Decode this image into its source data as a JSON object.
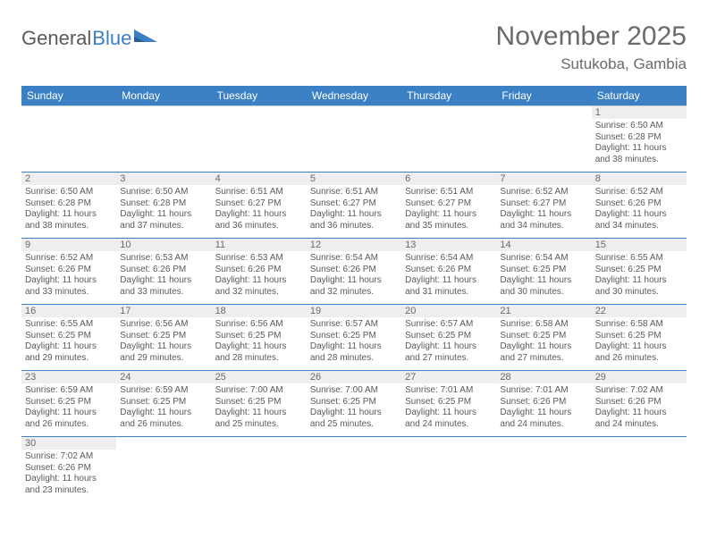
{
  "logo": {
    "part1": "General",
    "part2": "Blue"
  },
  "header": {
    "month_title": "November 2025",
    "location": "Sutukoba, Gambia"
  },
  "colors": {
    "header_bg": "#3b7fc4",
    "header_text": "#ffffff",
    "row_divider": "#3b7fc4",
    "daynum_bg": "#eeeeee",
    "text": "#5a5a5a"
  },
  "weekdays": [
    "Sunday",
    "Monday",
    "Tuesday",
    "Wednesday",
    "Thursday",
    "Friday",
    "Saturday"
  ],
  "weeks": [
    [
      null,
      null,
      null,
      null,
      null,
      null,
      {
        "n": "1",
        "sr": "6:50 AM",
        "ss": "6:28 PM",
        "dl": "11 hours and 38 minutes."
      }
    ],
    [
      {
        "n": "2",
        "sr": "6:50 AM",
        "ss": "6:28 PM",
        "dl": "11 hours and 38 minutes."
      },
      {
        "n": "3",
        "sr": "6:50 AM",
        "ss": "6:28 PM",
        "dl": "11 hours and 37 minutes."
      },
      {
        "n": "4",
        "sr": "6:51 AM",
        "ss": "6:27 PM",
        "dl": "11 hours and 36 minutes."
      },
      {
        "n": "5",
        "sr": "6:51 AM",
        "ss": "6:27 PM",
        "dl": "11 hours and 36 minutes."
      },
      {
        "n": "6",
        "sr": "6:51 AM",
        "ss": "6:27 PM",
        "dl": "11 hours and 35 minutes."
      },
      {
        "n": "7",
        "sr": "6:52 AM",
        "ss": "6:27 PM",
        "dl": "11 hours and 34 minutes."
      },
      {
        "n": "8",
        "sr": "6:52 AM",
        "ss": "6:26 PM",
        "dl": "11 hours and 34 minutes."
      }
    ],
    [
      {
        "n": "9",
        "sr": "6:52 AM",
        "ss": "6:26 PM",
        "dl": "11 hours and 33 minutes."
      },
      {
        "n": "10",
        "sr": "6:53 AM",
        "ss": "6:26 PM",
        "dl": "11 hours and 33 minutes."
      },
      {
        "n": "11",
        "sr": "6:53 AM",
        "ss": "6:26 PM",
        "dl": "11 hours and 32 minutes."
      },
      {
        "n": "12",
        "sr": "6:54 AM",
        "ss": "6:26 PM",
        "dl": "11 hours and 32 minutes."
      },
      {
        "n": "13",
        "sr": "6:54 AM",
        "ss": "6:26 PM",
        "dl": "11 hours and 31 minutes."
      },
      {
        "n": "14",
        "sr": "6:54 AM",
        "ss": "6:25 PM",
        "dl": "11 hours and 30 minutes."
      },
      {
        "n": "15",
        "sr": "6:55 AM",
        "ss": "6:25 PM",
        "dl": "11 hours and 30 minutes."
      }
    ],
    [
      {
        "n": "16",
        "sr": "6:55 AM",
        "ss": "6:25 PM",
        "dl": "11 hours and 29 minutes."
      },
      {
        "n": "17",
        "sr": "6:56 AM",
        "ss": "6:25 PM",
        "dl": "11 hours and 29 minutes."
      },
      {
        "n": "18",
        "sr": "6:56 AM",
        "ss": "6:25 PM",
        "dl": "11 hours and 28 minutes."
      },
      {
        "n": "19",
        "sr": "6:57 AM",
        "ss": "6:25 PM",
        "dl": "11 hours and 28 minutes."
      },
      {
        "n": "20",
        "sr": "6:57 AM",
        "ss": "6:25 PM",
        "dl": "11 hours and 27 minutes."
      },
      {
        "n": "21",
        "sr": "6:58 AM",
        "ss": "6:25 PM",
        "dl": "11 hours and 27 minutes."
      },
      {
        "n": "22",
        "sr": "6:58 AM",
        "ss": "6:25 PM",
        "dl": "11 hours and 26 minutes."
      }
    ],
    [
      {
        "n": "23",
        "sr": "6:59 AM",
        "ss": "6:25 PM",
        "dl": "11 hours and 26 minutes."
      },
      {
        "n": "24",
        "sr": "6:59 AM",
        "ss": "6:25 PM",
        "dl": "11 hours and 26 minutes."
      },
      {
        "n": "25",
        "sr": "7:00 AM",
        "ss": "6:25 PM",
        "dl": "11 hours and 25 minutes."
      },
      {
        "n": "26",
        "sr": "7:00 AM",
        "ss": "6:25 PM",
        "dl": "11 hours and 25 minutes."
      },
      {
        "n": "27",
        "sr": "7:01 AM",
        "ss": "6:25 PM",
        "dl": "11 hours and 24 minutes."
      },
      {
        "n": "28",
        "sr": "7:01 AM",
        "ss": "6:26 PM",
        "dl": "11 hours and 24 minutes."
      },
      {
        "n": "29",
        "sr": "7:02 AM",
        "ss": "6:26 PM",
        "dl": "11 hours and 24 minutes."
      }
    ],
    [
      {
        "n": "30",
        "sr": "7:02 AM",
        "ss": "6:26 PM",
        "dl": "11 hours and 23 minutes."
      },
      null,
      null,
      null,
      null,
      null,
      null
    ]
  ],
  "labels": {
    "sunrise_prefix": "Sunrise: ",
    "sunset_prefix": "Sunset: ",
    "daylight_prefix": "Daylight: "
  }
}
